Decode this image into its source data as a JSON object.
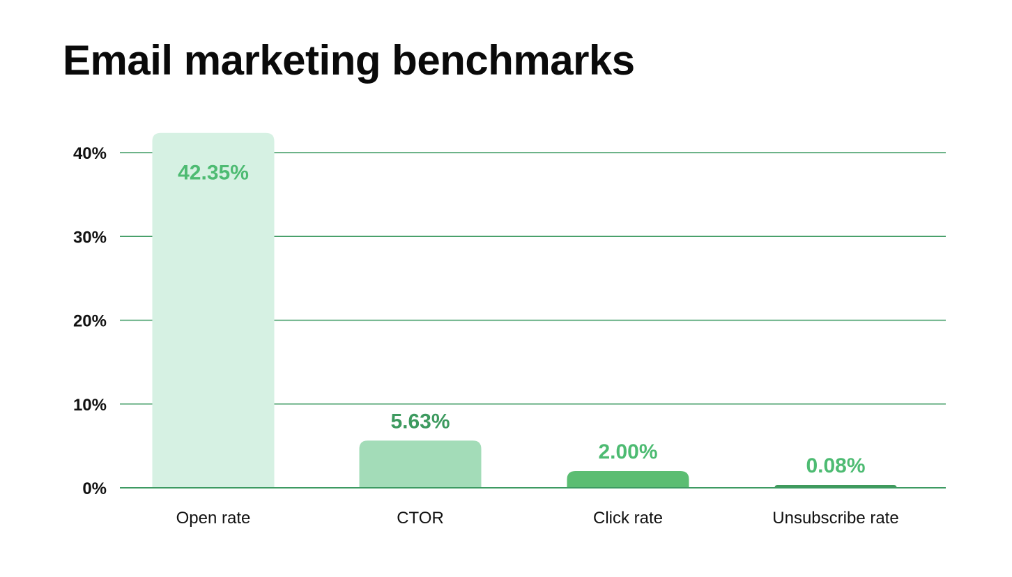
{
  "chart_data": {
    "type": "bar",
    "title": "Email marketing benchmarks",
    "xlabel": "",
    "ylabel": "",
    "categories": [
      "Open rate",
      "CTOR",
      "Click rate",
      "Unsubscribe rate"
    ],
    "values": [
      42.35,
      5.63,
      2.0,
      0.08
    ],
    "value_labels": [
      "42.35%",
      "5.63%",
      "2.00%",
      "0.08%"
    ],
    "ylim": [
      0,
      40
    ],
    "yticks": [
      0,
      10,
      20,
      30,
      40
    ],
    "ytick_labels": [
      "0%",
      "10%",
      "20%",
      "30%",
      "40%"
    ],
    "grid": true,
    "bar_colors": [
      "#d6f1e3",
      "#a3dcb8",
      "#5bbd72",
      "#3f9a5c"
    ],
    "label_colors": [
      "#4dbb72",
      "#3d9a5f",
      "#4dbb72",
      "#4dbb72"
    ],
    "grid_color": "#3d9a62"
  }
}
